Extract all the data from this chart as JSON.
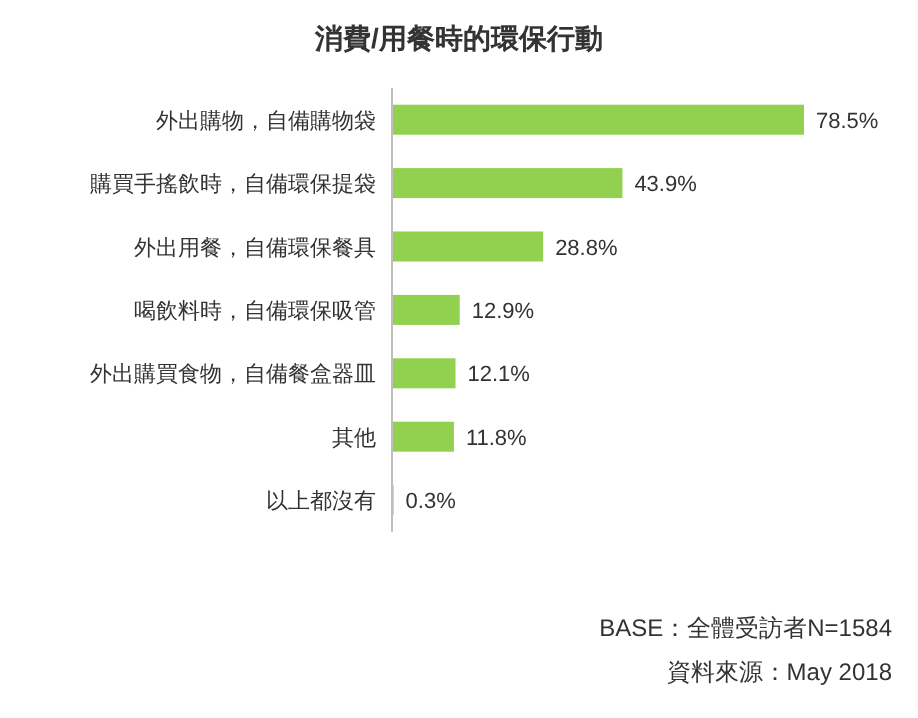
{
  "chart_data": {
    "type": "bar",
    "orientation": "horizontal",
    "title": "消費/用餐時的環保行動",
    "categories": [
      "外出購物，自備購物袋",
      "購買手搖飲時，自備環保提袋",
      "外出用餐，自備環保餐具",
      "喝飲料時，自備環保吸管",
      "外出購買食物，自備餐盒器皿",
      "其他",
      "以上都沒有"
    ],
    "values": [
      78.5,
      43.9,
      28.8,
      12.9,
      12.1,
      11.8,
      0.3
    ],
    "value_labels": [
      "78.5%",
      "43.9%",
      "28.8%",
      "12.9%",
      "12.1%",
      "11.8%",
      "0.3%"
    ],
    "color": "#92d050",
    "annotations": [
      "BASE：全體受訪者N=1584",
      "資料來源：May 2018"
    ]
  }
}
